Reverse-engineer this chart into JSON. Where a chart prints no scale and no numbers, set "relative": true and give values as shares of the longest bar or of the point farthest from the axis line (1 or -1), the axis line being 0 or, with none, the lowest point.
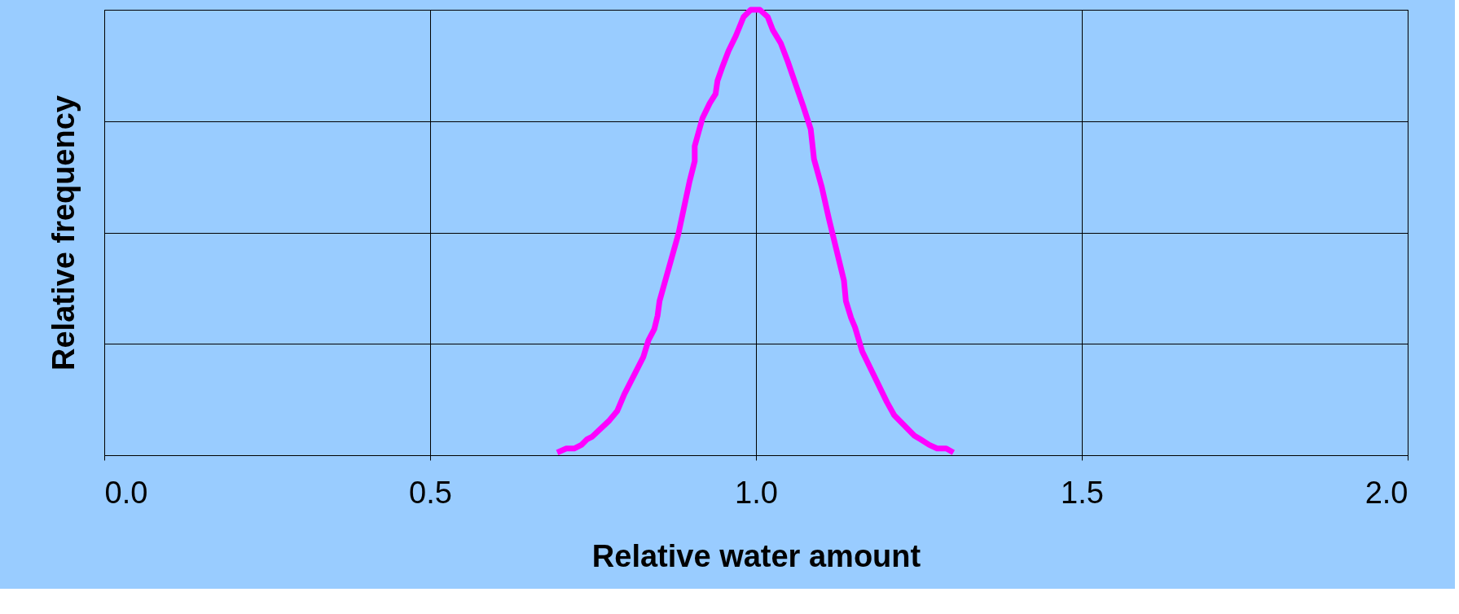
{
  "chart_data": {
    "type": "line",
    "relative": true,
    "xlabel": "Relative water amount",
    "ylabel": "Relative frequency",
    "xlim": [
      0,
      2
    ],
    "xticks": [
      {
        "value": 0,
        "label": "0.0"
      },
      {
        "value": 0.5,
        "label": "0.5"
      },
      {
        "value": 1,
        "label": "1.0"
      },
      {
        "value": 1.5,
        "label": "1.5"
      },
      {
        "value": 2,
        "label": "2.0"
      }
    ],
    "tick_labels": "x",
    "grid": true,
    "marker": "none",
    "line_style": "solid",
    "series": [
      {
        "color": "#ff00ff",
        "x": [
          0.695,
          0.709,
          0.721,
          0.732,
          0.741,
          0.749,
          0.775,
          0.787,
          0.798,
          0.827,
          0.835,
          0.844,
          0.849,
          0.852,
          0.881,
          0.898,
          0.906,
          0.906,
          0.918,
          0.929,
          0.938,
          0.941,
          0.949,
          0.958,
          0.969,
          0.981,
          0.992,
          1.006,
          1.018,
          1.026,
          1.038,
          1.049,
          1.061,
          1.072,
          1.084,
          1.089,
          1.101,
          1.112,
          1.135,
          1.138,
          1.146,
          1.152,
          1.163,
          1.201,
          1.212,
          1.243,
          1.252,
          1.266,
          1.278,
          1.292,
          1.303
        ],
        "values": [
          0.006,
          0.015,
          0.015,
          0.023,
          0.036,
          0.042,
          0.078,
          0.099,
          0.137,
          0.22,
          0.258,
          0.283,
          0.313,
          0.346,
          0.497,
          0.614,
          0.66,
          0.694,
          0.757,
          0.79,
          0.811,
          0.841,
          0.874,
          0.908,
          0.941,
          0.984,
          1.0,
          1.0,
          0.984,
          0.954,
          0.925,
          0.883,
          0.832,
          0.786,
          0.732,
          0.665,
          0.602,
          0.53,
          0.392,
          0.346,
          0.308,
          0.287,
          0.233,
          0.119,
          0.09,
          0.044,
          0.036,
          0.023,
          0.015,
          0.015,
          0.006
        ]
      }
    ]
  }
}
